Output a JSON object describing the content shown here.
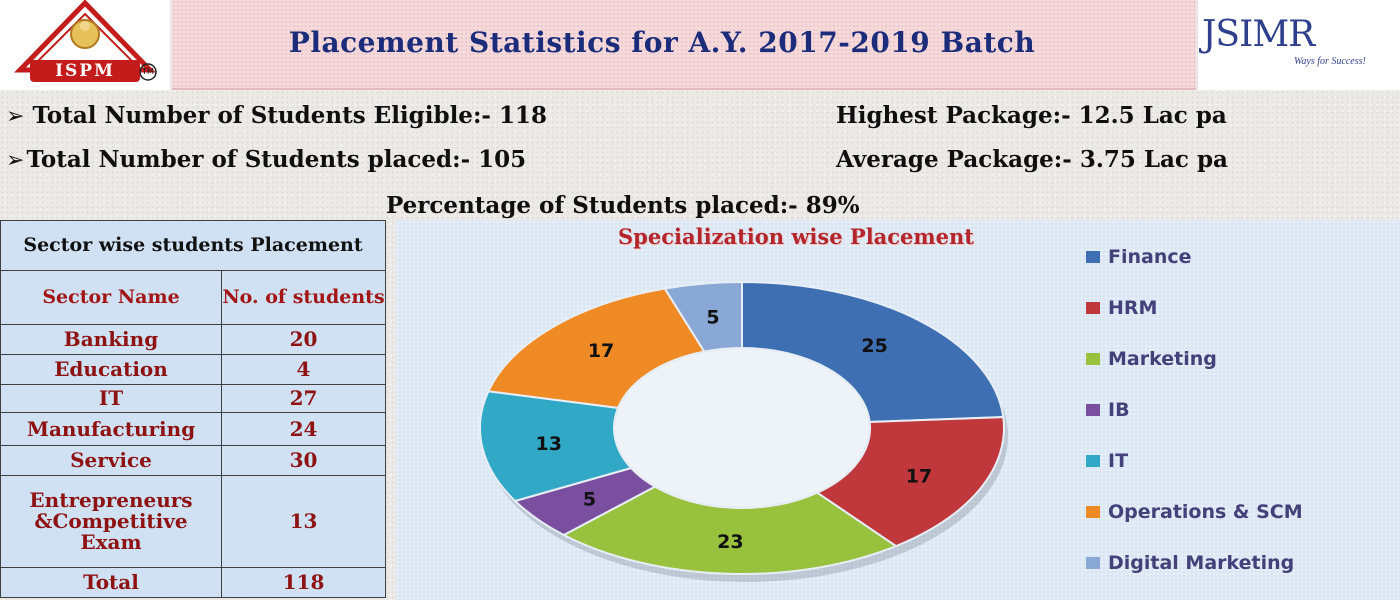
{
  "header": {
    "title": "Placement Statistics for A.Y. 2017-2019 Batch",
    "logo_left_text": "ISPM",
    "logo_left_mark": "TM",
    "logo_right_text": "JSIMR",
    "logo_right_tagline": "Ways for Success!"
  },
  "stats": {
    "eligible": "Total Number of Students Eligible:- 118",
    "placed": "Total Number of Students placed:- 105",
    "highest": "Highest Package:- 12.5 Lac pa",
    "average": "Average Package:- 3.75 Lac pa",
    "percentage": "Percentage of Students placed:- 89%",
    "bullet_icon": "arrow-bullet-icon"
  },
  "sector_table": {
    "title": "Sector wise students Placement",
    "col_sector": "Sector Name",
    "col_count": "No. of students",
    "rows": [
      {
        "name": "Banking",
        "count": "20"
      },
      {
        "name": "Education",
        "count": "4"
      },
      {
        "name": "IT",
        "count": "27"
      },
      {
        "name": "Manufacturing",
        "count": "24"
      },
      {
        "name": "Service",
        "count": "30"
      },
      {
        "name": "Entrepreneurs &Competitive Exam",
        "count": "13"
      }
    ],
    "total_label": "Total",
    "total_value": "118"
  },
  "chart_data": {
    "type": "pie",
    "title": "Specialization wise Placement",
    "categories": [
      "Finance",
      "HRM",
      "Marketing",
      "IB",
      "IT",
      "Operations & SCM",
      "Digital Marketing"
    ],
    "values": [
      25,
      17,
      23,
      5,
      13,
      17,
      5
    ],
    "colors": [
      "#3f6fb3",
      "#c0383b",
      "#98c13e",
      "#7a4fa0",
      "#31a9c6",
      "#f08a24",
      "#8aa8d6"
    ],
    "donut": true,
    "legend_position": "right"
  }
}
